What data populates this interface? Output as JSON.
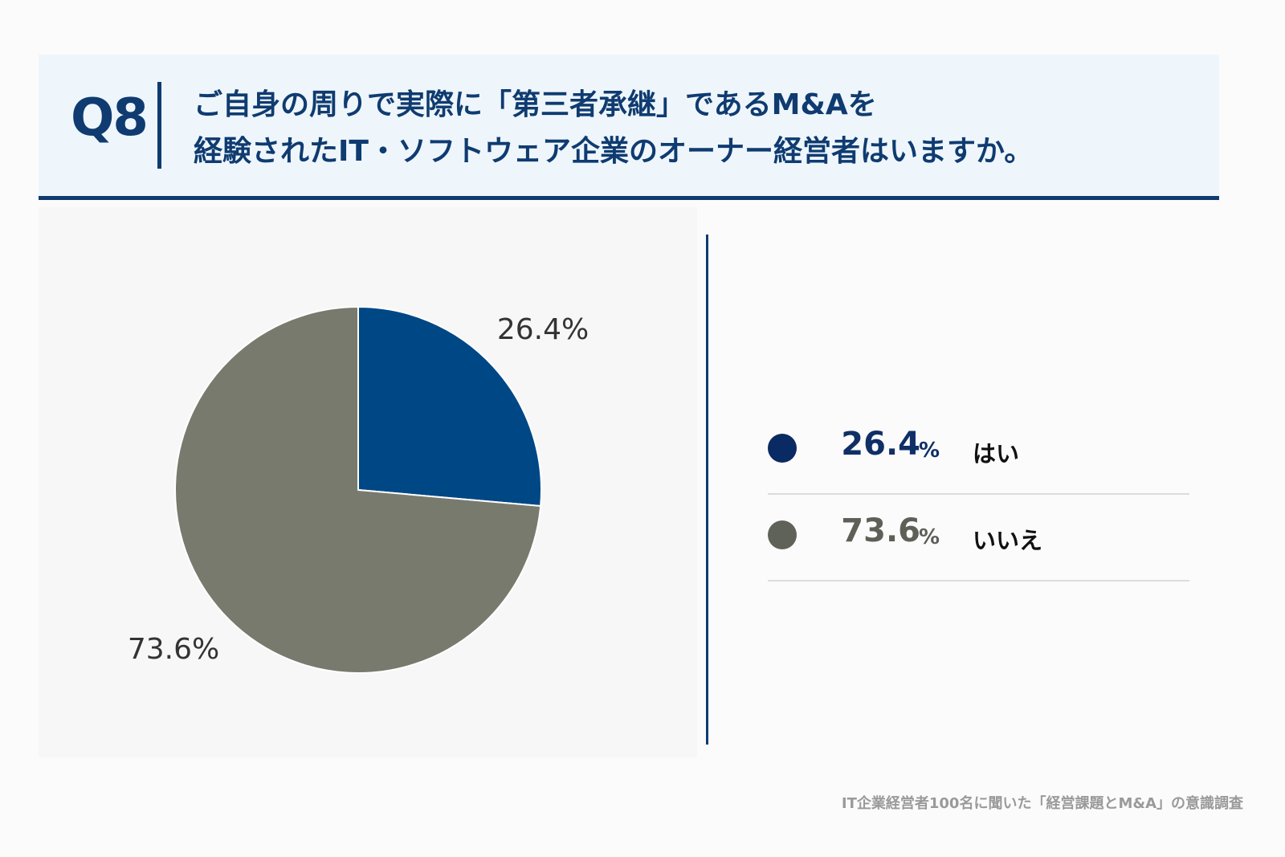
{
  "header": {
    "qnum": "Q8",
    "question_line1": "ご自身の周りで実際に「第三者承継」であるM&Aを",
    "question_line2": "経験されたIT・ソフトウェア企業のオーナー経営者はいますか。"
  },
  "chart_data": {
    "type": "pie",
    "categories": [
      "はい",
      "いいえ"
    ],
    "values": [
      26.4,
      73.6
    ],
    "slice_labels": [
      "26.4%",
      "73.6%"
    ],
    "colors": [
      "#004785",
      "#787a6e"
    ]
  },
  "legend": {
    "items": [
      {
        "value": "26.4",
        "unit": "%",
        "label": "はい",
        "dot_color": "#0a2a63",
        "value_color": "#0f2f66"
      },
      {
        "value": "73.6",
        "unit": "%",
        "label": "いいえ",
        "dot_color": "#5f6258",
        "value_color": "#5e6058"
      }
    ]
  },
  "source": "IT企業経営者100名に聞いた「経営課題とM&A」の意識調査"
}
